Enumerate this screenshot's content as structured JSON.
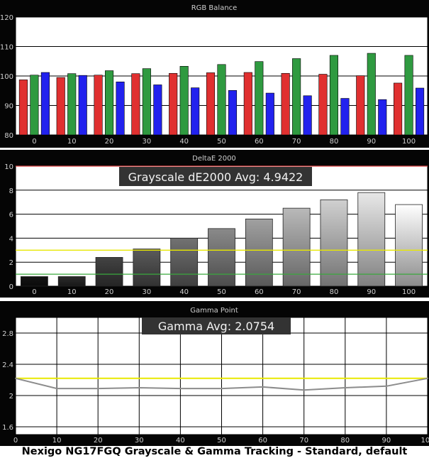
{
  "caption": "Nexigo NG17FGQ Grayscale & Gamma Tracking - Standard, default",
  "colors": {
    "panel_bg": "#050505",
    "plot_bg": "#ffffff",
    "grid": "#000000",
    "red": "#e03030",
    "green": "#2f9a40",
    "blue": "#2222ee",
    "yellow": "#e8e800",
    "threshold_green": "#39a83d",
    "threshold_red": "#e04848",
    "gamma_line": "#8c8c8c"
  },
  "chart_data": [
    {
      "type": "bar",
      "title": "RGB Balance",
      "categories": [
        "0",
        "10",
        "20",
        "30",
        "40",
        "50",
        "60",
        "70",
        "80",
        "90",
        "100"
      ],
      "series": [
        {
          "color_key": "red",
          "values": [
            98.7,
            99.5,
            100.3,
            100.8,
            100.9,
            101.1,
            101.2,
            100.9,
            100.6,
            100.1,
            97.6
          ]
        },
        {
          "color_key": "green",
          "values": [
            100.3,
            100.8,
            101.8,
            102.5,
            103.3,
            103.9,
            104.9,
            105.9,
            107.0,
            107.7,
            107.0
          ]
        },
        {
          "color_key": "blue",
          "values": [
            101.2,
            100.2,
            98.0,
            97.0,
            96.0,
            95.1,
            94.2,
            93.3,
            92.4,
            92.0,
            95.9
          ]
        }
      ],
      "ylim": [
        80,
        120
      ],
      "yticks": [
        "80",
        "90",
        "100",
        "110",
        "120"
      ],
      "grid": true
    },
    {
      "type": "bar",
      "title": "DeltaE 2000",
      "annotation": "Grayscale dE2000 Avg: 4.9422",
      "categories": [
        "0",
        "10",
        "20",
        "30",
        "40",
        "50",
        "60",
        "70",
        "80",
        "90",
        "100"
      ],
      "values": [
        0.8,
        0.8,
        2.4,
        3.1,
        4.0,
        4.8,
        5.6,
        6.5,
        7.2,
        7.8,
        6.8
      ],
      "ylim": [
        0,
        10
      ],
      "yticks": [
        "0",
        "2",
        "4",
        "6",
        "8",
        "10"
      ],
      "thresholds": [
        {
          "value": 1,
          "color_key": "threshold_green"
        },
        {
          "value": 3,
          "color_key": "yellow"
        },
        {
          "value": 10,
          "color_key": "threshold_red"
        }
      ],
      "grid": true
    },
    {
      "type": "line",
      "title": "Gamma Point",
      "annotation": "Gamma Avg: 2.0754",
      "x": [
        0,
        10,
        20,
        30,
        40,
        50,
        60,
        70,
        80,
        90,
        100
      ],
      "xticks": [
        "0",
        "10",
        "20",
        "30",
        "40",
        "50",
        "60",
        "70",
        "80",
        "90",
        "100"
      ],
      "values": [
        2.22,
        2.09,
        2.09,
        2.1,
        2.09,
        2.09,
        2.11,
        2.07,
        2.1,
        2.12,
        2.22
      ],
      "reference": 2.22,
      "ylim": [
        1.5,
        3.0
      ],
      "yticks": [
        "1.6",
        "2",
        "2.4",
        "2.8"
      ],
      "grid": true
    }
  ]
}
